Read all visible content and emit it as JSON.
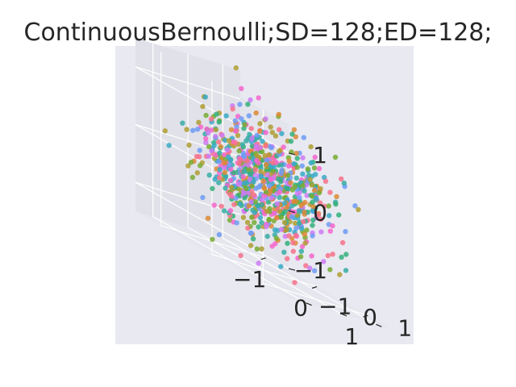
{
  "chart_data": {
    "type": "scatter",
    "projection": "3d",
    "title": "ContinuousBernoulli;SD=128;ED=128;",
    "style": {
      "pane_color": "#e9e9f1",
      "grid_color": "#ffffff",
      "text_color": "#262626",
      "background": "#ffffff"
    },
    "x_axis": {
      "range": [
        -1.5,
        1.5
      ],
      "ticks": [
        -1,
        0,
        1
      ],
      "tick_labels": [
        "−1",
        "0",
        "1"
      ]
    },
    "y_axis": {
      "range": [
        -1.5,
        1.5
      ],
      "ticks": [
        -1,
        0,
        1
      ],
      "tick_labels": [
        "−1",
        "0",
        "1"
      ]
    },
    "z_axis": {
      "range": [
        -1.5,
        1.5
      ],
      "ticks": [
        -1,
        0,
        1
      ],
      "tick_labels": [
        "−1",
        "0",
        "1"
      ]
    },
    "grid": true,
    "legend": "none",
    "palette": [
      "#f77189",
      "#dc8932",
      "#ae9d31",
      "#77ab31",
      "#33b07a",
      "#36ada4",
      "#38a9c5",
      "#6e9bf4",
      "#cc7af4",
      "#f565cc"
    ],
    "point_count": 800,
    "distribution": "approximately isotropic Gaussian cloud centered at origin, std ≈ 0.5 per axis",
    "outlier_points": [
      {
        "x": 0.15,
        "y": 0.2,
        "z": 1.05
      },
      {
        "x": -0.9,
        "y": -0.3,
        "z": -1.1
      },
      {
        "x": 1.2,
        "y": 0.4,
        "z": -0.9
      },
      {
        "x": 0.6,
        "y": 1.0,
        "z": -1.0
      }
    ]
  }
}
